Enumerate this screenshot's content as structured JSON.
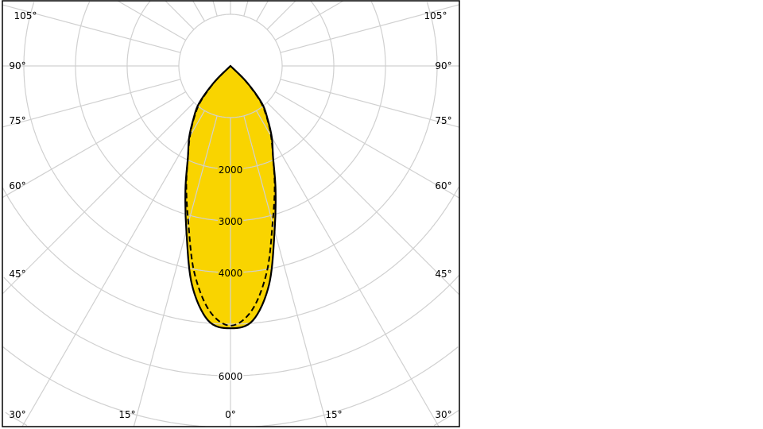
{
  "chart_data": {
    "type": "polar",
    "title": "",
    "angle_unit": "°",
    "angle_ticks": [
      "105°",
      "90°",
      "75°",
      "60°",
      "45°",
      "30°",
      "15°",
      "0°",
      "15°",
      "30°",
      "45°",
      "60°",
      "75°",
      "90°",
      "105°"
    ],
    "radial_ticks": [
      {
        "value": 2000,
        "label": "2000"
      },
      {
        "value": 3000,
        "label": "3000"
      },
      {
        "value": 4000,
        "label": "4000"
      },
      {
        "value": 6000,
        "label": "6000"
      }
    ],
    "radial_step": 1000,
    "angle_step": 15,
    "grid": true,
    "fill_color": "#F9D400",
    "grid_color": "#D0D0D0",
    "series": [
      {
        "style": "solid",
        "angles": [
          0,
          5,
          10,
          15,
          20,
          25,
          30,
          35,
          40,
          45,
          50
        ],
        "values": [
          5080,
          4950,
          4300,
          3300,
          2550,
          1950,
          1600,
          1250,
          950,
          450,
          0
        ]
      },
      {
        "style": "dashed",
        "angles": [
          0,
          5,
          10,
          15,
          20,
          25,
          30,
          35,
          40,
          45,
          50
        ],
        "values": [
          5030,
          4750,
          4050,
          3150,
          2500,
          1950,
          1570,
          1230,
          900,
          420,
          0
        ]
      }
    ]
  }
}
